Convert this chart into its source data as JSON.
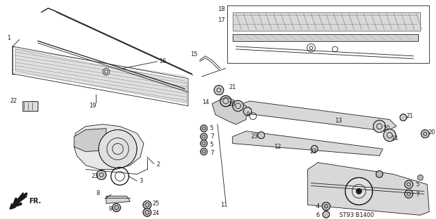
{
  "background_color": "#ffffff",
  "diagram_color": "#1a1a1a",
  "fig_width": 6.37,
  "fig_height": 3.2,
  "dpi": 100,
  "caption": "ST93 B1400",
  "fr_text": "FR."
}
